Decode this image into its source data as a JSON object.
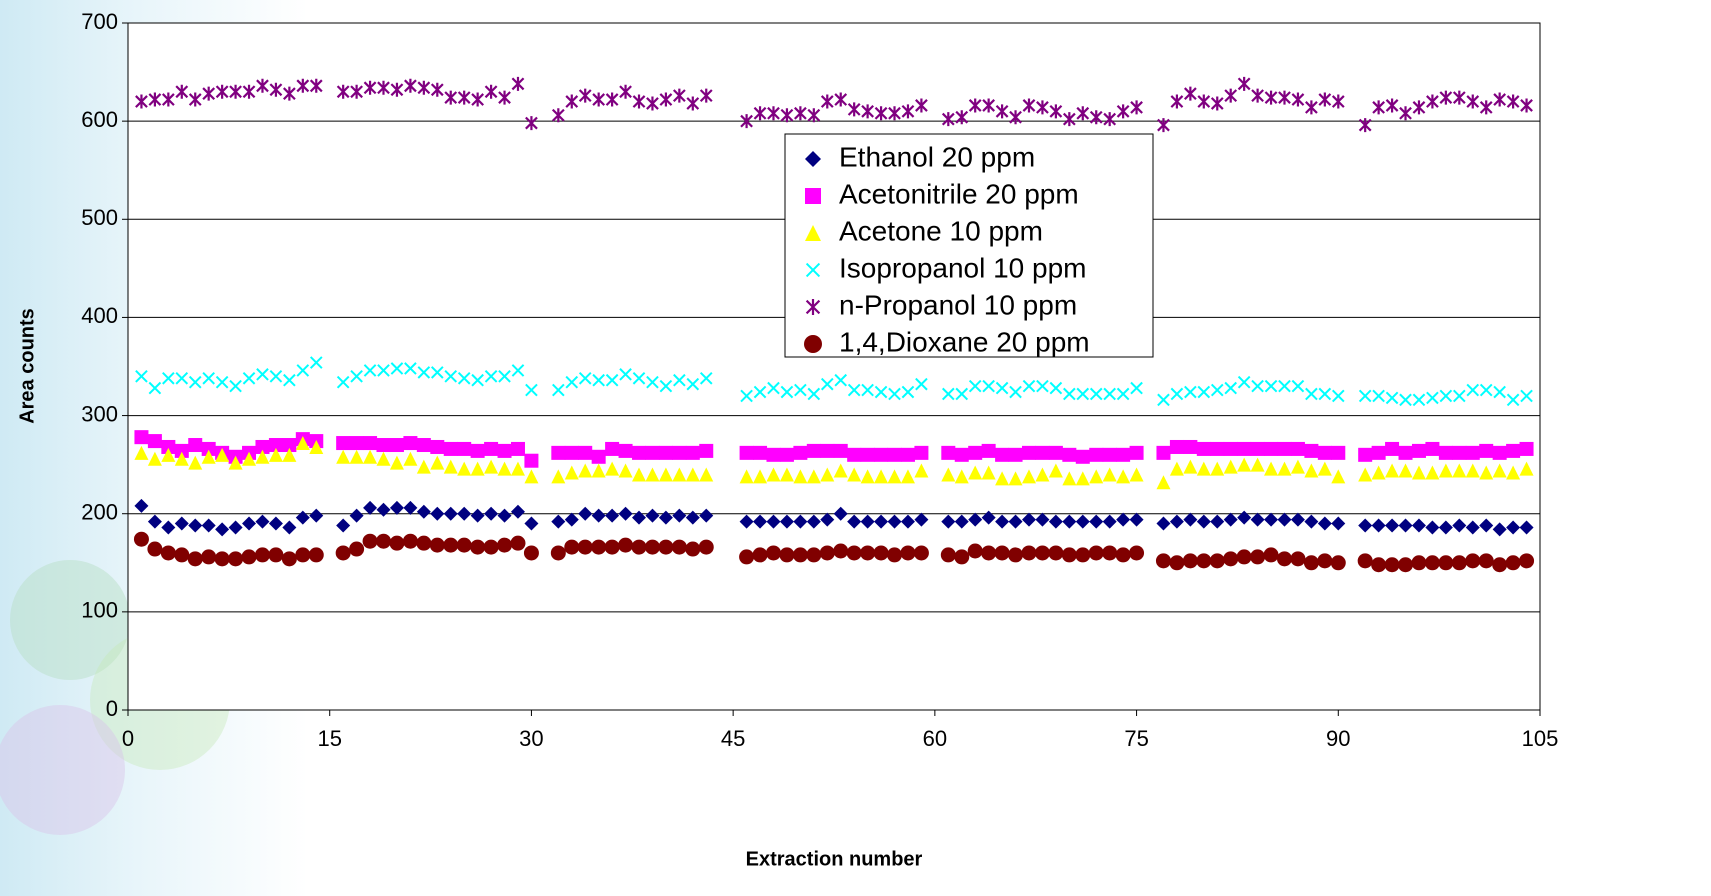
{
  "chart_data": {
    "type": "scatter",
    "x_label": "Extraction number",
    "y_label": "Area counts",
    "xlim": [
      0,
      105
    ],
    "xticks": [
      0,
      15,
      30,
      45,
      60,
      75,
      90,
      105
    ],
    "ylim": [
      0,
      700
    ],
    "yticks": [
      0,
      100,
      200,
      300,
      400,
      500,
      600,
      700
    ],
    "grid": true,
    "legend": "upper right",
    "x": [
      1,
      2,
      3,
      4,
      5,
      6,
      7,
      8,
      9,
      10,
      11,
      12,
      13,
      14,
      16,
      17,
      18,
      19,
      20,
      21,
      22,
      23,
      24,
      25,
      26,
      27,
      28,
      29,
      30,
      32,
      33,
      34,
      35,
      36,
      37,
      38,
      39,
      40,
      41,
      42,
      43,
      46,
      47,
      48,
      49,
      50,
      51,
      52,
      53,
      54,
      55,
      56,
      57,
      58,
      59,
      61,
      62,
      63,
      64,
      65,
      66,
      67,
      68,
      69,
      70,
      71,
      72,
      73,
      74,
      75,
      77,
      78,
      79,
      80,
      81,
      82,
      83,
      84,
      85,
      86,
      87,
      88,
      89,
      90,
      92,
      93,
      94,
      95,
      96,
      97,
      98,
      99,
      100,
      101,
      102,
      103,
      104
    ],
    "series": [
      {
        "name": "Ethanol 20 ppm",
        "color": "#000080",
        "marker": "diamond",
        "values": [
          208,
          192,
          186,
          190,
          188,
          188,
          184,
          186,
          190,
          192,
          190,
          186,
          196,
          198,
          188,
          198,
          206,
          204,
          206,
          206,
          202,
          200,
          200,
          200,
          198,
          200,
          198,
          202,
          190,
          192,
          194,
          200,
          198,
          198,
          200,
          196,
          198,
          196,
          198,
          196,
          198,
          192,
          192,
          192,
          192,
          192,
          192,
          194,
          200,
          192,
          192,
          192,
          192,
          192,
          194,
          192,
          192,
          194,
          196,
          192,
          192,
          194,
          194,
          192,
          192,
          192,
          192,
          192,
          194,
          194,
          190,
          192,
          194,
          192,
          192,
          194,
          196,
          194,
          194,
          194,
          194,
          192,
          190,
          190,
          188,
          188,
          188,
          188,
          188,
          186,
          186,
          188,
          186,
          188,
          184,
          186,
          186
        ]
      },
      {
        "name": "Acetonitrile 20 ppm",
        "color": "#ff00ff",
        "marker": "square",
        "values": [
          278,
          274,
          268,
          264,
          270,
          266,
          262,
          258,
          262,
          268,
          270,
          270,
          276,
          274,
          272,
          272,
          272,
          270,
          270,
          272,
          270,
          268,
          266,
          266,
          264,
          266,
          264,
          266,
          254,
          262,
          262,
          262,
          258,
          266,
          264,
          262,
          262,
          262,
          262,
          262,
          264,
          262,
          262,
          260,
          260,
          262,
          264,
          264,
          264,
          260,
          260,
          260,
          260,
          260,
          262,
          262,
          260,
          262,
          264,
          260,
          260,
          262,
          262,
          262,
          260,
          258,
          260,
          260,
          260,
          262,
          262,
          268,
          268,
          266,
          266,
          266,
          266,
          266,
          266,
          266,
          266,
          264,
          262,
          262,
          260,
          262,
          266,
          262,
          264,
          266,
          262,
          262,
          262,
          264,
          262,
          264,
          266
        ]
      },
      {
        "name": "Acetone 10 ppm",
        "color": "#ffff00",
        "marker": "triangle",
        "values": [
          262,
          256,
          260,
          256,
          252,
          258,
          260,
          252,
          256,
          258,
          260,
          260,
          272,
          268,
          258,
          258,
          258,
          256,
          252,
          256,
          248,
          252,
          248,
          246,
          246,
          248,
          246,
          246,
          238,
          238,
          242,
          244,
          244,
          246,
          244,
          240,
          240,
          240,
          240,
          240,
          240,
          238,
          238,
          240,
          240,
          238,
          238,
          240,
          244,
          240,
          238,
          238,
          238,
          238,
          244,
          240,
          238,
          242,
          242,
          236,
          236,
          238,
          240,
          244,
          236,
          236,
          238,
          240,
          238,
          240,
          232,
          246,
          248,
          246,
          246,
          248,
          250,
          250,
          246,
          246,
          248,
          244,
          246,
          238,
          240,
          242,
          244,
          244,
          242,
          242,
          244,
          244,
          244,
          242,
          244,
          242,
          246
        ]
      },
      {
        "name": "Isopropanol 10 ppm",
        "color": "#00ffff",
        "marker": "x",
        "values": [
          340,
          328,
          338,
          338,
          334,
          338,
          334,
          330,
          338,
          342,
          340,
          336,
          346,
          354,
          334,
          340,
          346,
          346,
          348,
          348,
          344,
          344,
          340,
          338,
          336,
          340,
          340,
          346,
          326,
          326,
          334,
          338,
          336,
          336,
          342,
          338,
          334,
          330,
          336,
          332,
          338,
          320,
          324,
          328,
          324,
          326,
          322,
          332,
          336,
          326,
          326,
          324,
          322,
          324,
          332,
          322,
          322,
          330,
          330,
          328,
          324,
          330,
          330,
          328,
          322,
          322,
          322,
          322,
          322,
          328,
          316,
          322,
          324,
          324,
          326,
          328,
          334,
          330,
          330,
          330,
          330,
          322,
          322,
          320,
          320,
          320,
          318,
          316,
          316,
          318,
          320,
          320,
          326,
          326,
          324,
          316,
          320
        ]
      },
      {
        "name": "n-Propanol 10 ppm",
        "color": "#800080",
        "marker": "asterisk",
        "values": [
          620,
          622,
          622,
          630,
          622,
          628,
          630,
          630,
          630,
          636,
          632,
          628,
          636,
          636,
          630,
          630,
          634,
          634,
          632,
          636,
          634,
          632,
          624,
          624,
          622,
          630,
          624,
          638,
          598,
          606,
          620,
          626,
          622,
          622,
          630,
          620,
          618,
          622,
          626,
          618,
          626,
          600,
          608,
          608,
          606,
          608,
          606,
          620,
          622,
          612,
          610,
          608,
          608,
          610,
          616,
          602,
          604,
          616,
          616,
          610,
          604,
          616,
          614,
          610,
          602,
          608,
          604,
          602,
          610,
          614,
          596,
          620,
          628,
          620,
          618,
          626,
          638,
          626,
          624,
          624,
          622,
          614,
          622,
          620,
          596,
          614,
          616,
          608,
          614,
          620,
          624,
          624,
          620,
          614,
          622,
          620,
          616
        ]
      },
      {
        "name": "1,4,Dioxane 20 ppm",
        "color": "#800000",
        "marker": "circle",
        "values": [
          174,
          164,
          160,
          158,
          154,
          156,
          154,
          154,
          156,
          158,
          158,
          154,
          158,
          158,
          160,
          164,
          172,
          172,
          170,
          172,
          170,
          168,
          168,
          168,
          166,
          166,
          168,
          170,
          160,
          160,
          166,
          166,
          166,
          166,
          168,
          166,
          166,
          166,
          166,
          164,
          166,
          156,
          158,
          160,
          158,
          158,
          158,
          160,
          162,
          160,
          160,
          160,
          158,
          160,
          160,
          158,
          156,
          162,
          160,
          160,
          158,
          160,
          160,
          160,
          158,
          158,
          160,
          160,
          158,
          160,
          152,
          150,
          152,
          152,
          152,
          154,
          156,
          156,
          158,
          154,
          154,
          150,
          152,
          150,
          152,
          148,
          148,
          148,
          150,
          150,
          150,
          150,
          152,
          152,
          148,
          150,
          152
        ]
      }
    ]
  }
}
